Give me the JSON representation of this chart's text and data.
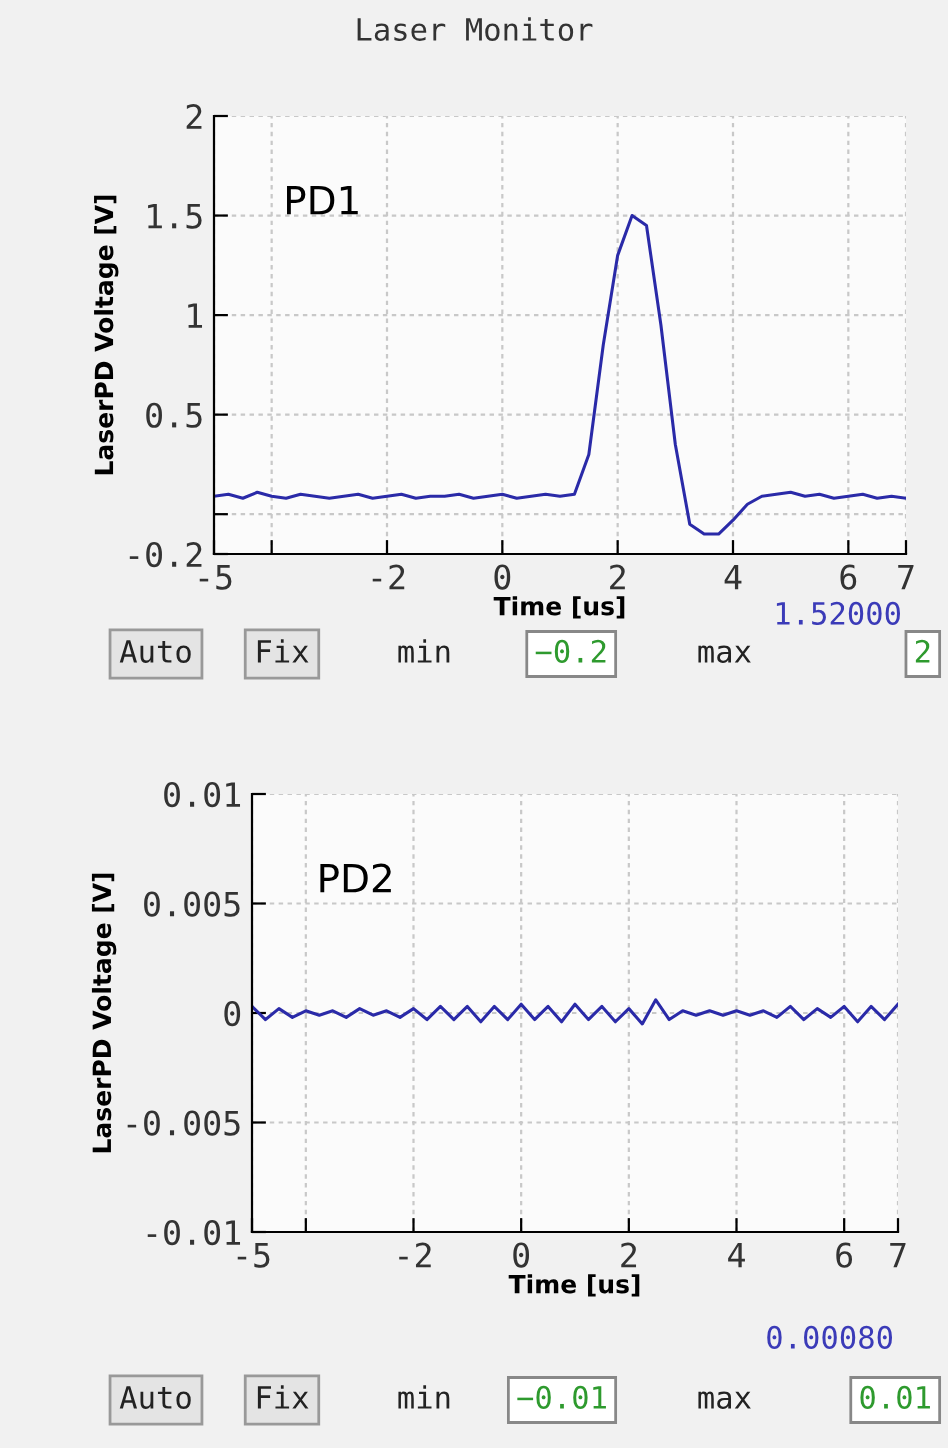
{
  "chart_data": [
    {
      "type": "line",
      "title": "Laser Monitor",
      "xlabel": "Time [us]",
      "ylabel": "LaserPD Voltage [V]",
      "x": [
        -5,
        -4.75,
        -4.5,
        -4.25,
        -4,
        -3.75,
        -3.5,
        -3.25,
        -3,
        -2.75,
        -2.5,
        -2.25,
        -2,
        -1.75,
        -1.5,
        -1.25,
        -1,
        -0.75,
        -0.5,
        -0.25,
        0,
        0.25,
        0.5,
        0.75,
        1,
        1.25,
        1.5,
        1.75,
        2,
        2.25,
        2.5,
        2.75,
        3,
        3.25,
        3.5,
        3.75,
        4,
        4.25,
        4.5,
        4.75,
        5,
        5.25,
        5.5,
        5.75,
        6,
        6.25,
        6.5,
        6.75,
        7
      ],
      "series": [
        {
          "color": "#2a2aa8",
          "values": [
            0.09,
            0.1,
            0.08,
            0.11,
            0.09,
            0.08,
            0.1,
            0.09,
            0.08,
            0.09,
            0.1,
            0.08,
            0.09,
            0.1,
            0.08,
            0.09,
            0.09,
            0.1,
            0.08,
            0.09,
            0.1,
            0.08,
            0.09,
            0.1,
            0.09,
            0.1,
            0.3,
            0.85,
            1.3,
            1.5,
            1.45,
            0.95,
            0.35,
            -0.05,
            -0.1,
            -0.1,
            -0.03,
            0.05,
            0.09,
            0.1,
            0.11,
            0.09,
            0.1,
            0.08,
            0.09,
            0.1,
            0.08,
            0.09,
            0.08
          ]
        }
      ],
      "xlim": [
        -5,
        7
      ],
      "xticks": [
        -5,
        {
          "value": -4,
          "label": null
        },
        -2,
        0,
        2,
        4,
        6,
        7
      ],
      "ylim": [
        -0.2,
        2
      ],
      "yticks": [
        -0.2,
        {
          "value": 0,
          "label": null
        },
        0.5,
        1,
        1.5,
        2
      ],
      "grid": true,
      "line_style": "solid",
      "marker": "none",
      "annotations": [
        "PD1",
        "1.52000",
        "Auto",
        "Fix",
        "min",
        "−0.2",
        "max",
        "2"
      ]
    },
    {
      "type": "line",
      "xlabel": "Time [us]",
      "ylabel": "LaserPD Voltage [V]",
      "x": [
        -5,
        -4.75,
        -4.5,
        -4.25,
        -4,
        -3.75,
        -3.5,
        -3.25,
        -3,
        -2.75,
        -2.5,
        -2.25,
        -2,
        -1.75,
        -1.5,
        -1.25,
        -1,
        -0.75,
        -0.5,
        -0.25,
        0,
        0.25,
        0.5,
        0.75,
        1,
        1.25,
        1.5,
        1.75,
        2,
        2.25,
        2.5,
        2.75,
        3,
        3.25,
        3.5,
        3.75,
        4,
        4.25,
        4.5,
        4.75,
        5,
        5.25,
        5.5,
        5.75,
        6,
        6.25,
        6.5,
        6.75,
        7
      ],
      "series": [
        {
          "color": "#2a2aa8",
          "values": [
            0.0003,
            -0.0003,
            0.0002,
            -0.0002,
            0.0001,
            -0.0001,
            0.0001,
            -0.0002,
            0.0002,
            -0.0001,
            0.0001,
            -0.0002,
            0.0002,
            -0.0003,
            0.0003,
            -0.0003,
            0.0003,
            -0.0004,
            0.0003,
            -0.0003,
            0.0004,
            -0.0003,
            0.0003,
            -0.0004,
            0.0004,
            -0.0003,
            0.0003,
            -0.0004,
            0.0002,
            -0.0005,
            0.0006,
            -0.0003,
            0.0001,
            -0.0001,
            0.0001,
            -0.0001,
            0.0001,
            -0.0001,
            0.0001,
            -0.0002,
            0.0003,
            -0.0003,
            0.0002,
            -0.0002,
            0.0003,
            -0.0004,
            0.0003,
            -0.0003,
            0.0004
          ]
        }
      ],
      "xlim": [
        -5,
        7
      ],
      "xticks": [
        -5,
        {
          "value": -4,
          "label": null
        },
        -2,
        0,
        2,
        4,
        6,
        7
      ],
      "ylim": [
        -0.01,
        0.01
      ],
      "yticks": [
        -0.01,
        -0.005,
        0,
        0.005,
        0.01
      ],
      "grid": true,
      "line_style": "solid",
      "marker": "none",
      "annotations": [
        "PD2",
        "0.00080",
        "Auto",
        "Fix",
        "min",
        "−0.01",
        "max",
        "0.01"
      ]
    }
  ]
}
